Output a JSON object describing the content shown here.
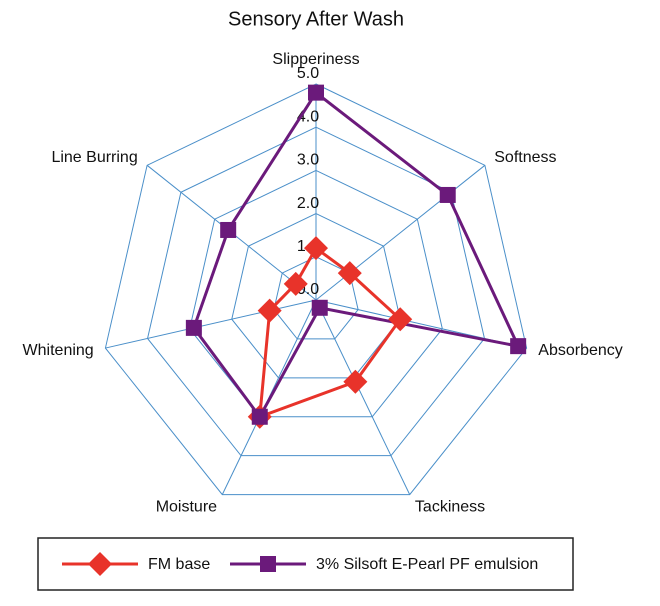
{
  "chart_data": {
    "type": "radar",
    "title": "Sensory After Wash",
    "categories": [
      "Slipperiness",
      "Softness",
      "Absorbency",
      "Tackiness",
      "Moisture",
      "Whitening",
      "Line Burring"
    ],
    "series": [
      {
        "name": "FM base",
        "color": "#e8332a",
        "values": [
          1.2,
          1.0,
          2.0,
          2.1,
          3.0,
          1.1,
          0.6
        ]
      },
      {
        "name": "3% Silsoft E-Pearl PF emulsion",
        "color": "#6b1a7b",
        "values": [
          4.8,
          3.9,
          4.8,
          0.2,
          3.0,
          2.9,
          2.6
        ]
      }
    ],
    "ylim": [
      0,
      5
    ],
    "yticks": [
      {
        "value": 0,
        "label": "0.0"
      },
      {
        "value": 1,
        "label": "1.0"
      },
      {
        "value": 2,
        "label": "2.0"
      },
      {
        "value": 3,
        "label": "3.0"
      },
      {
        "value": 4,
        "label": "4.0"
      },
      {
        "value": 5,
        "label": "5.0"
      }
    ],
    "grid": true,
    "legend": "bottom"
  }
}
